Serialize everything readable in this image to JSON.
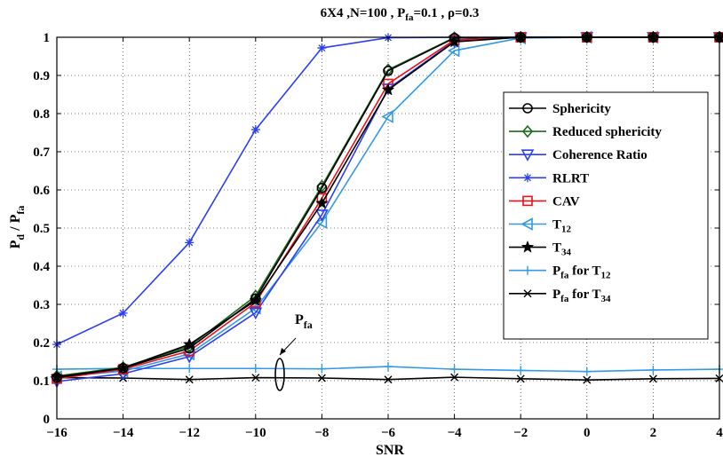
{
  "chart_data": {
    "type": "line",
    "title": {
      "prefix": "6X4  ,N=100 , P",
      "sub": "fa",
      "suffix": "=0.1 , ρ=0.3"
    },
    "xlabel": "SNR",
    "ylabel": {
      "p1": "P",
      "s1": "d",
      "mid": " / P",
      "s2": "fa"
    },
    "xlim": [
      -16,
      4
    ],
    "ylim": [
      0,
      1
    ],
    "xticks": [
      -16,
      -14,
      -12,
      -10,
      -8,
      -6,
      -4,
      -2,
      0,
      2,
      4
    ],
    "xtick_labels": [
      "−16",
      "−14",
      "−12",
      "−10",
      "−8",
      "−6",
      "−4",
      "−2",
      "0",
      "2",
      "4"
    ],
    "yticks": [
      0,
      0.1,
      0.2,
      0.3,
      0.4,
      0.5,
      0.6,
      0.7,
      0.8,
      0.9,
      1
    ],
    "ytick_labels": [
      "0",
      "0.1",
      "0.2",
      "0.3",
      "0.4",
      "0.5",
      "0.6",
      "0.7",
      "0.8",
      "0.9",
      "1"
    ],
    "grid": true,
    "legend_position": "right",
    "x": [
      -16,
      -14,
      -12,
      -10,
      -8,
      -6,
      -4,
      -2,
      0,
      2,
      4
    ],
    "series": [
      {
        "name": "Sphericity",
        "base": "Sphericity",
        "sub": "",
        "tail": "",
        "tsub": "",
        "color": "#000000",
        "marker": "circle",
        "values": [
          0.108,
          0.133,
          0.185,
          0.315,
          0.605,
          0.912,
          0.998,
          1,
          1,
          1,
          1
        ]
      },
      {
        "name": "Reduced sphericity",
        "base": "Reduced sphericity",
        "sub": "",
        "tail": "",
        "tsub": "",
        "color": "#1a6b1a",
        "marker": "diamond",
        "values": [
          0.112,
          0.135,
          0.19,
          0.322,
          0.61,
          0.915,
          0.999,
          1,
          1,
          1,
          1
        ]
      },
      {
        "name": "Coherence Ratio",
        "base": "Coherence Ratio",
        "sub": "",
        "tail": "",
        "tsub": "",
        "color": "#2a3ff0",
        "marker": "tri-down",
        "values": [
          0.098,
          0.118,
          0.163,
          0.278,
          0.535,
          0.865,
          0.99,
          1,
          1,
          1,
          1
        ]
      },
      {
        "name": "RLRT",
        "base": "RLRT",
        "sub": "",
        "tail": "",
        "tsub": "",
        "color": "#2a3ff0",
        "marker": "asterisk",
        "values": [
          0.195,
          0.277,
          0.462,
          0.758,
          0.972,
          0.999,
          1,
          1,
          1,
          1,
          1
        ]
      },
      {
        "name": "CAV",
        "base": "CAV",
        "sub": "",
        "tail": "",
        "tsub": "",
        "color": "#e8121b",
        "marker": "square",
        "values": [
          0.105,
          0.13,
          0.178,
          0.305,
          0.578,
          0.878,
          0.993,
          1,
          1,
          1,
          1
        ]
      },
      {
        "name": "T12",
        "base": "T",
        "sub": "12",
        "tail": "",
        "tsub": "",
        "color": "#3399e6",
        "marker": "tri-left",
        "values": [
          0.11,
          0.125,
          0.17,
          0.29,
          0.515,
          0.792,
          0.965,
          0.998,
          1,
          1,
          1
        ]
      },
      {
        "name": "T34",
        "base": "T",
        "sub": "34",
        "tail": "",
        "tsub": "",
        "color": "#000000",
        "marker": "star",
        "values": [
          0.11,
          0.133,
          0.195,
          0.31,
          0.565,
          0.862,
          0.988,
          1,
          1,
          1,
          1
        ]
      },
      {
        "name": "Pfa for T12",
        "base": "P",
        "sub": "fa",
        "tail": " for T",
        "tsub": "12",
        "color": "#3399e6",
        "marker": "plus",
        "values": [
          0.13,
          0.132,
          0.132,
          0.132,
          0.131,
          0.137,
          0.13,
          0.127,
          0.124,
          0.128,
          0.13
        ]
      },
      {
        "name": "Pfa for T34",
        "base": "P",
        "sub": "fa",
        "tail": " for T",
        "tsub": "34",
        "color": "#000000",
        "marker": "x",
        "values": [
          0.108,
          0.107,
          0.103,
          0.108,
          0.107,
          0.103,
          0.109,
          0.105,
          0.102,
          0.105,
          0.106
        ]
      }
    ],
    "annotation": {
      "text": "P",
      "sub": "fa",
      "x": -9.3,
      "y": 0.12
    }
  }
}
